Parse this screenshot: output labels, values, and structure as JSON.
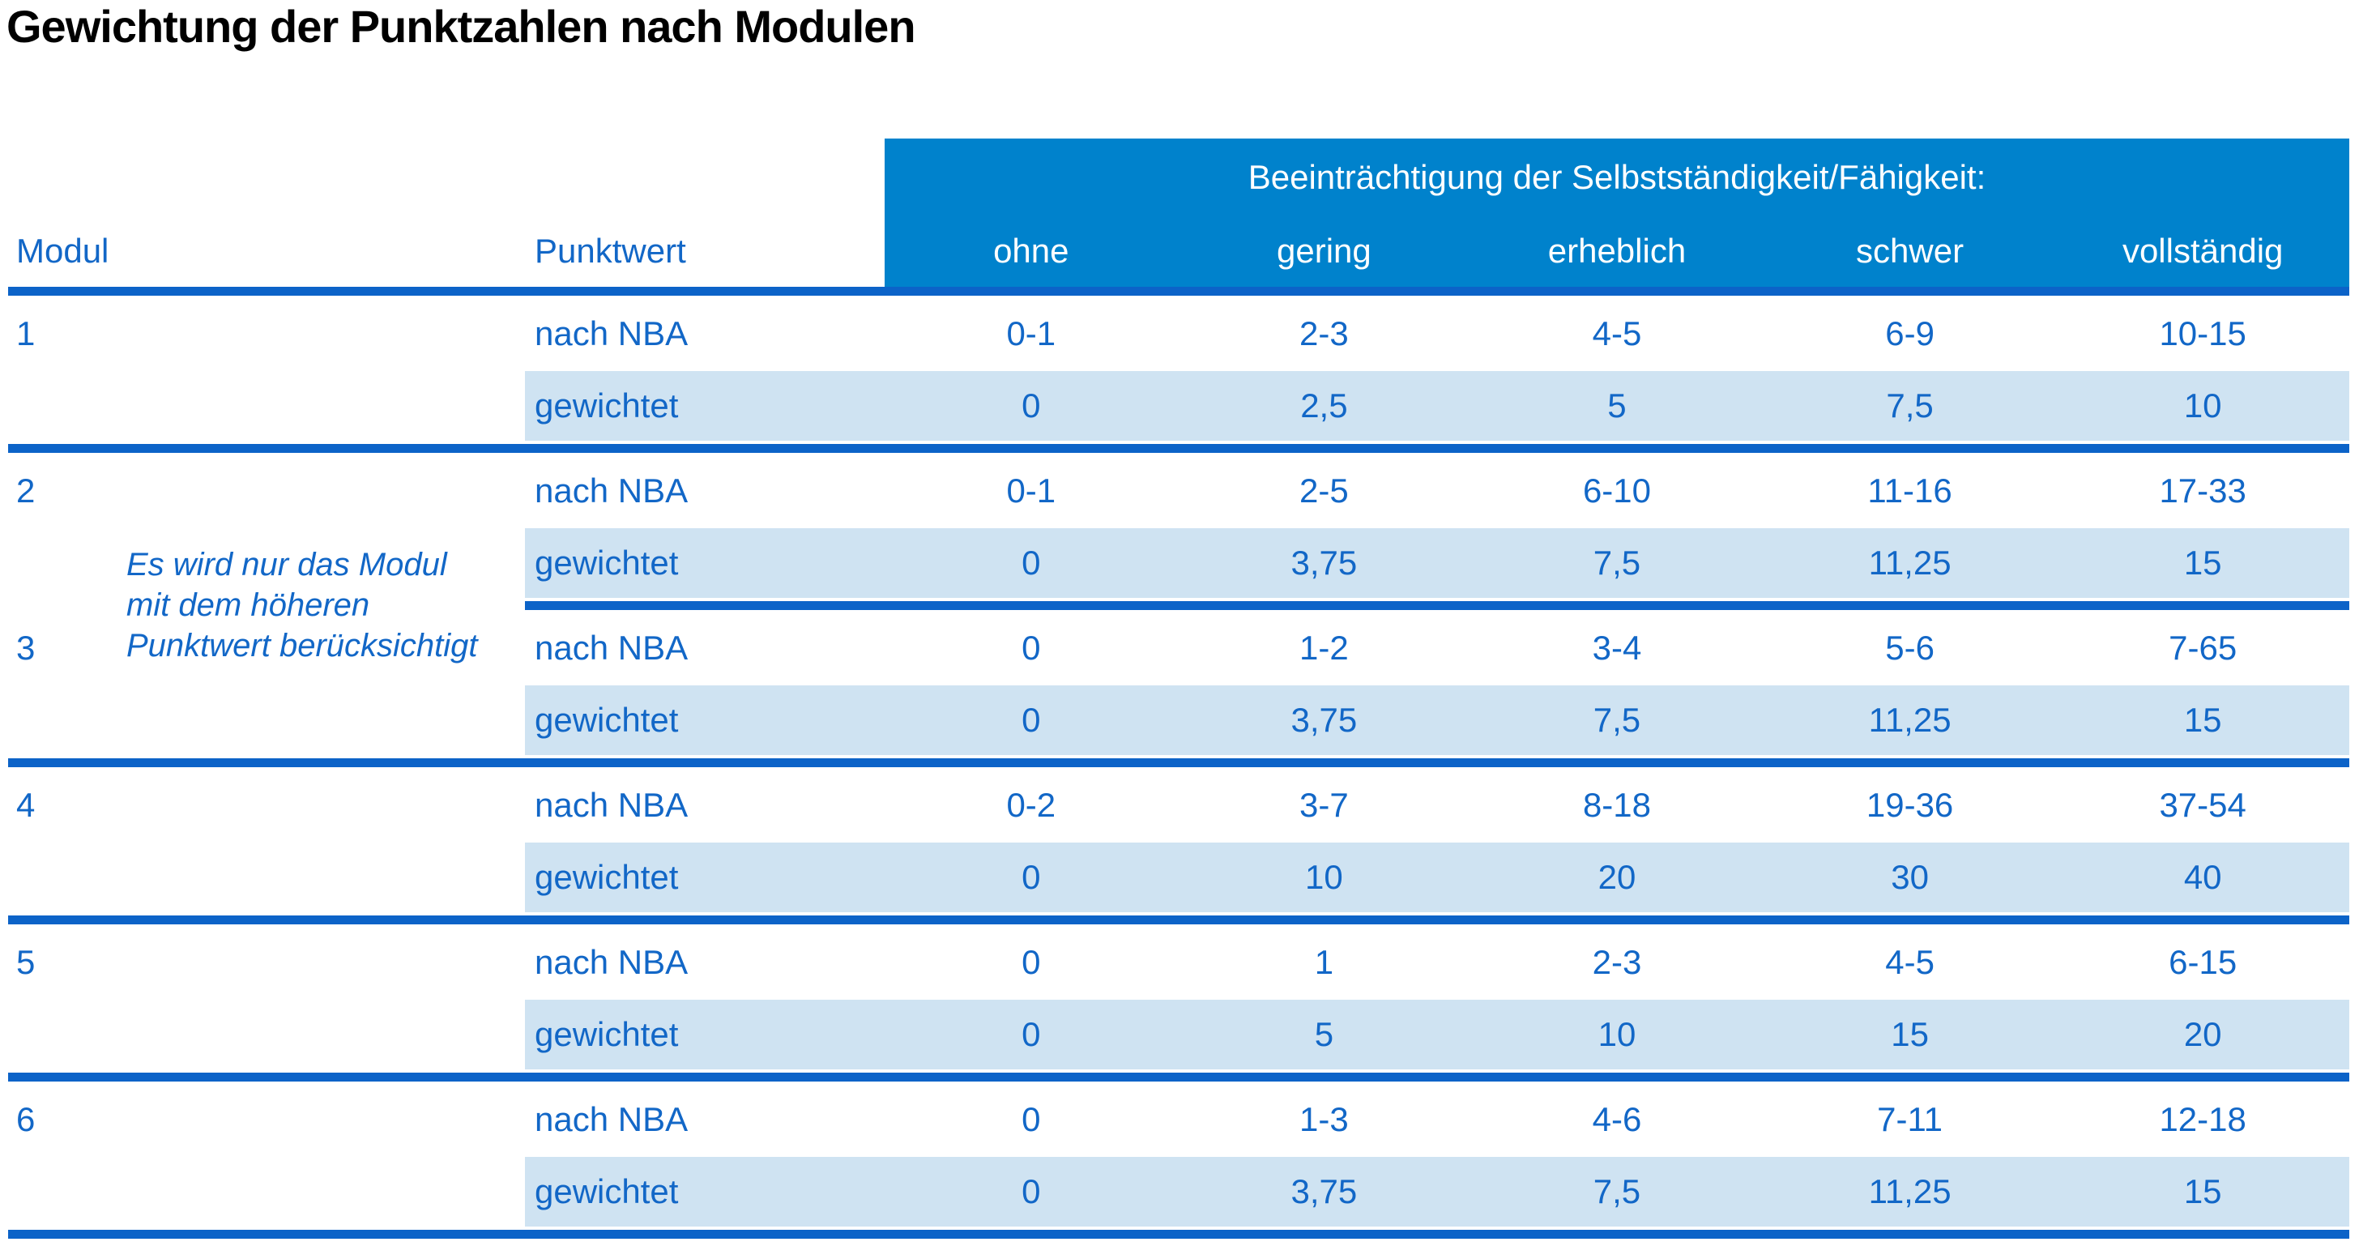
{
  "title": "Gewichtung der Punktzahlen nach Modulen",
  "colors": {
    "header_blue": "#0082cc",
    "divider_blue": "#0c63c8",
    "row_light_blue": "#cfe3f2",
    "text_blue": "#1267c7",
    "title_black": "#000000",
    "header_text_white": "#ffffff"
  },
  "table": {
    "group_header": "Beeinträchtigung der Selbstständigkeit/Fähigkeit:",
    "col_modul": "Modul",
    "col_punktwert": "Punktwert",
    "levels": [
      "ohne",
      "gering",
      "erheblich",
      "schwer",
      "vollständig"
    ],
    "labels": {
      "nba": "nach NBA",
      "weighted": "gewichtet"
    },
    "note": [
      "Es wird nur das Modul",
      "mit dem höheren",
      "Punktwert berücksichtigt"
    ],
    "modules": [
      {
        "number": "1",
        "nba": [
          "0-1",
          "2-3",
          "4-5",
          "6-9",
          "10-15"
        ],
        "weighted": [
          "0",
          "2,5",
          "5",
          "7,5",
          "10"
        ]
      },
      {
        "number": "2",
        "nba": [
          "0-1",
          "2-5",
          "6-10",
          "11-16",
          "17-33"
        ],
        "weighted": [
          "0",
          "3,75",
          "7,5",
          "11,25",
          "15"
        ]
      },
      {
        "number": "3",
        "nba": [
          "0",
          "1-2",
          "3-4",
          "5-6",
          "7-65"
        ],
        "weighted": [
          "0",
          "3,75",
          "7,5",
          "11,25",
          "15"
        ]
      },
      {
        "number": "4",
        "nba": [
          "0-2",
          "3-7",
          "8-18",
          "19-36",
          "37-54"
        ],
        "weighted": [
          "0",
          "10",
          "20",
          "30",
          "40"
        ]
      },
      {
        "number": "5",
        "nba": [
          "0",
          "1",
          "2-3",
          "4-5",
          "6-15"
        ],
        "weighted": [
          "0",
          "5",
          "10",
          "15",
          "20"
        ]
      },
      {
        "number": "6",
        "nba": [
          "0",
          "1-3",
          "4-6",
          "7-11",
          "12-18"
        ],
        "weighted": [
          "0",
          "3,75",
          "7,5",
          "11,25",
          "15"
        ]
      }
    ]
  }
}
